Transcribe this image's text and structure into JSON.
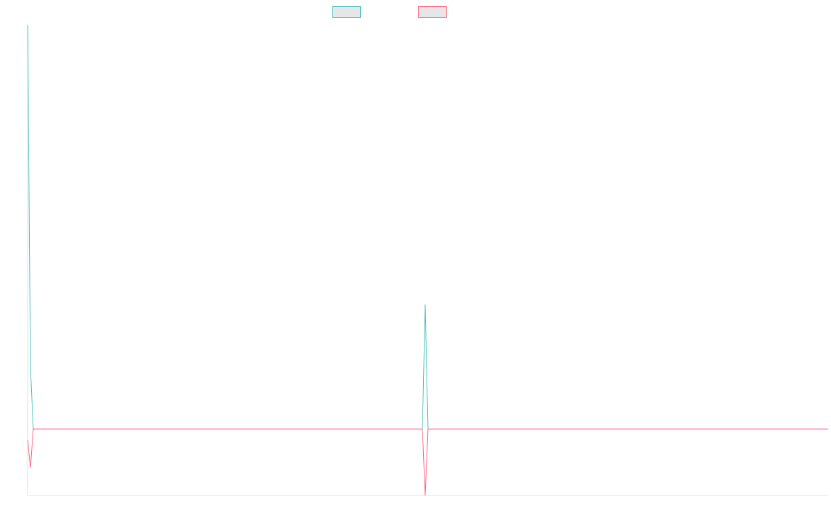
{
  "chart_data": {
    "type": "line",
    "title": "",
    "xlabel": "",
    "ylabel": "",
    "grid": false,
    "legend_position": "top-center",
    "x": [
      0,
      1,
      2,
      3,
      4,
      5,
      6,
      7,
      8,
      9,
      10,
      11,
      12,
      13,
      14,
      15,
      16,
      17,
      18,
      19,
      20,
      21,
      22,
      23,
      24,
      25,
      26,
      27,
      28,
      29,
      30,
      31,
      32,
      33,
      34,
      35,
      36,
      37,
      38,
      39,
      40,
      41,
      42,
      43,
      44,
      45,
      46,
      47,
      48,
      49,
      50,
      51,
      52,
      53,
      54,
      55,
      56,
      57,
      58,
      59,
      60,
      61,
      62,
      63,
      64,
      65,
      66,
      67,
      68,
      69,
      70,
      71,
      72,
      73,
      74,
      75,
      76,
      77,
      78,
      79,
      80,
      81,
      82,
      83,
      84,
      85,
      86,
      87,
      88,
      89,
      90,
      91,
      92,
      93,
      94,
      95,
      96,
      97,
      98,
      99,
      100,
      101,
      102,
      103,
      104,
      105,
      106,
      107,
      108,
      109,
      110,
      111,
      112,
      113,
      114,
      115,
      116,
      117,
      118,
      119,
      120,
      121,
      122,
      123,
      124,
      125,
      126,
      127,
      128,
      129,
      130,
      131,
      132,
      133,
      134,
      135,
      136,
      137,
      138,
      139,
      140,
      141,
      142,
      143,
      144,
      145,
      146,
      147,
      148,
      149,
      150,
      151,
      152,
      153,
      154,
      155,
      156,
      157,
      158,
      159,
      160,
      161,
      162,
      163,
      164,
      165,
      166,
      167,
      168,
      169,
      170,
      171,
      172,
      173,
      174,
      175,
      176,
      177,
      178,
      179,
      180,
      181,
      182,
      183,
      184,
      185,
      186,
      187,
      188,
      189,
      190,
      191,
      192,
      193,
      194,
      195,
      196,
      197,
      198,
      199,
      200,
      201,
      202,
      203,
      204,
      205,
      206,
      207,
      208,
      209,
      210,
      211,
      212,
      213,
      214,
      215,
      216,
      217,
      218,
      219,
      220,
      221,
      222,
      223,
      224,
      225,
      226,
      227,
      228,
      229,
      230,
      231,
      232,
      233,
      234,
      235,
      236,
      237,
      238,
      239,
      240,
      241,
      242,
      243,
      244,
      245,
      246,
      247,
      248,
      249,
      250,
      251,
      252,
      253,
      254,
      255,
      256,
      257,
      258,
      259,
      260,
      261,
      262,
      263,
      264,
      265,
      266,
      267,
      268,
      269,
      270,
      271,
      272,
      273,
      274,
      275,
      276,
      277,
      278,
      279,
      280,
      281,
      282,
      283,
      284,
      285,
      286,
      287,
      288
    ],
    "xlim": [
      0,
      288
    ],
    "ylim": [
      -240,
      1460
    ],
    "series": [
      {
        "color": "#4bc0c0",
        "values": [
          1460,
          220,
          0,
          0,
          0,
          0,
          0,
          0,
          0,
          0,
          0,
          0,
          0,
          0,
          0,
          0,
          0,
          0,
          0,
          0,
          0,
          0,
          0,
          0,
          0,
          0,
          0,
          0,
          0,
          0,
          0,
          0,
          0,
          0,
          0,
          0,
          0,
          0,
          0,
          0,
          0,
          0,
          0,
          0,
          0,
          0,
          0,
          0,
          0,
          0,
          0,
          0,
          0,
          0,
          0,
          0,
          0,
          0,
          0,
          0,
          0,
          0,
          0,
          0,
          0,
          0,
          0,
          0,
          0,
          0,
          0,
          0,
          0,
          0,
          0,
          0,
          0,
          0,
          0,
          0,
          0,
          0,
          0,
          0,
          0,
          0,
          0,
          0,
          0,
          0,
          0,
          0,
          0,
          0,
          0,
          0,
          0,
          0,
          0,
          0,
          0,
          0,
          0,
          0,
          0,
          0,
          0,
          0,
          0,
          0,
          0,
          0,
          0,
          0,
          0,
          0,
          0,
          0,
          0,
          0,
          0,
          0,
          0,
          0,
          0,
          0,
          0,
          0,
          0,
          0,
          0,
          0,
          0,
          0,
          0,
          0,
          0,
          0,
          0,
          0,
          0,
          0,
          0,
          450,
          0,
          0,
          0,
          0,
          0,
          0,
          0,
          0,
          0,
          0,
          0,
          0,
          0,
          0,
          0,
          0,
          0,
          0,
          0,
          0,
          0,
          0,
          0,
          0,
          0,
          0,
          0,
          0,
          0,
          0,
          0,
          0,
          0,
          0,
          0,
          0,
          0,
          0,
          0,
          0,
          0,
          0,
          0,
          0,
          0,
          0,
          0,
          0,
          0,
          0,
          0,
          0,
          0,
          0,
          0,
          0,
          0,
          0,
          0,
          0,
          0,
          0,
          0,
          0,
          0,
          0,
          0,
          0,
          0,
          0,
          0,
          0,
          0,
          0,
          0,
          0,
          0,
          0,
          0,
          0,
          0,
          0,
          0,
          0,
          0,
          0,
          0,
          0,
          0,
          0,
          0,
          0,
          0,
          0,
          0,
          0,
          0,
          0,
          0,
          0,
          0,
          0,
          0,
          0,
          0,
          0,
          0,
          0,
          0,
          0,
          0,
          0,
          0,
          0,
          0,
          0,
          0,
          0,
          0,
          0,
          0,
          0,
          0,
          0,
          0,
          0,
          0,
          0,
          0,
          0,
          0,
          0,
          0,
          0,
          0,
          0,
          0,
          0,
          0,
          0,
          0,
          0,
          0,
          0,
          0
        ]
      },
      {
        "color": "#ff6384",
        "values": [
          -40,
          -140,
          0,
          0,
          0,
          0,
          0,
          0,
          0,
          0,
          0,
          0,
          0,
          0,
          0,
          0,
          0,
          0,
          0,
          0,
          0,
          0,
          0,
          0,
          0,
          0,
          0,
          0,
          0,
          0,
          0,
          0,
          0,
          0,
          0,
          0,
          0,
          0,
          0,
          0,
          0,
          0,
          0,
          0,
          0,
          0,
          0,
          0,
          0,
          0,
          0,
          0,
          0,
          0,
          0,
          0,
          0,
          0,
          0,
          0,
          0,
          0,
          0,
          0,
          0,
          0,
          0,
          0,
          0,
          0,
          0,
          0,
          0,
          0,
          0,
          0,
          0,
          0,
          0,
          0,
          0,
          0,
          0,
          0,
          0,
          0,
          0,
          0,
          0,
          0,
          0,
          0,
          0,
          0,
          0,
          0,
          0,
          0,
          0,
          0,
          0,
          0,
          0,
          0,
          0,
          0,
          0,
          0,
          0,
          0,
          0,
          0,
          0,
          0,
          0,
          0,
          0,
          0,
          0,
          0,
          0,
          0,
          0,
          0,
          0,
          0,
          0,
          0,
          0,
          0,
          0,
          0,
          0,
          0,
          0,
          0,
          0,
          0,
          0,
          0,
          0,
          0,
          0,
          -240,
          0,
          0,
          0,
          0,
          0,
          0,
          0,
          0,
          0,
          0,
          0,
          0,
          0,
          0,
          0,
          0,
          0,
          0,
          0,
          0,
          0,
          0,
          0,
          0,
          0,
          0,
          0,
          0,
          0,
          0,
          0,
          0,
          0,
          0,
          0,
          0,
          0,
          0,
          0,
          0,
          0,
          0,
          0,
          0,
          0,
          0,
          0,
          0,
          0,
          0,
          0,
          0,
          0,
          0,
          0,
          0,
          0,
          0,
          0,
          0,
          0,
          0,
          0,
          0,
          0,
          0,
          0,
          0,
          0,
          0,
          0,
          0,
          0,
          0,
          0,
          0,
          0,
          0,
          0,
          0,
          0,
          0,
          0,
          0,
          0,
          0,
          0,
          0,
          0,
          0,
          0,
          0,
          0,
          0,
          0,
          0,
          0,
          0,
          0,
          0,
          0,
          0,
          0,
          0,
          0,
          0,
          0,
          0,
          0,
          0,
          0,
          0,
          0,
          0,
          0,
          0,
          0,
          0,
          0,
          0,
          0,
          0,
          0,
          0,
          0,
          0,
          0,
          0,
          0,
          0,
          0,
          0,
          0,
          0,
          0,
          0,
          0,
          0,
          0,
          0,
          0,
          0,
          0,
          0,
          0
        ]
      }
    ]
  }
}
